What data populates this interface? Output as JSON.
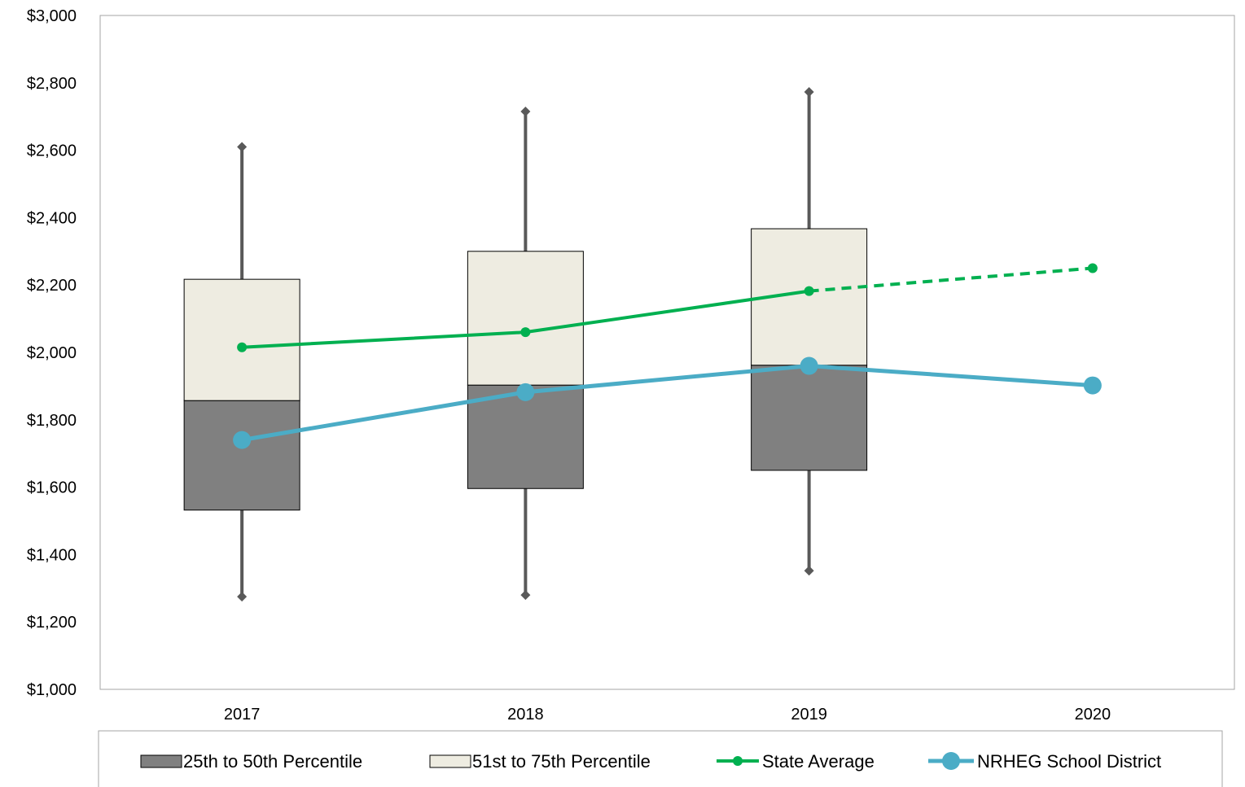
{
  "chart_data": {
    "type": "box-line",
    "categories": [
      "2017",
      "2018",
      "2019",
      "2020"
    ],
    "y_ticks": [
      "$1,000",
      "$1,200",
      "$1,400",
      "$1,600",
      "$1,800",
      "$2,000",
      "$2,200",
      "$2,400",
      "$2,600",
      "$2,800",
      "$3,000"
    ],
    "ylim": [
      1000,
      3000
    ],
    "y_tick_step": 200,
    "boxes": [
      {
        "category": "2017",
        "min": 1275,
        "q1": 1532,
        "median": 1857,
        "q3": 2217,
        "max": 2610
      },
      {
        "category": "2018",
        "min": 1280,
        "q1": 1596,
        "median": 1903,
        "q3": 2300,
        "max": 2715
      },
      {
        "category": "2019",
        "min": 1352,
        "q1": 1650,
        "median": 1962,
        "q3": 2367,
        "max": 2773
      }
    ],
    "series": [
      {
        "name": "State Average",
        "values": [
          2015,
          2060,
          2182,
          2250
        ],
        "color": "#00b050",
        "projected_from_index": 2
      },
      {
        "name": "NRHEG School District",
        "values": [
          1740,
          1882,
          1960,
          1902
        ],
        "color": "#4bacc6"
      }
    ],
    "legend": [
      {
        "label": "25th to 50th Percentile",
        "kind": "box",
        "color": "#808080"
      },
      {
        "label": "51st to 75th Percentile",
        "kind": "box",
        "color": "#eeece1"
      },
      {
        "label": "State Average",
        "kind": "line-small-marker",
        "color": "#00b050"
      },
      {
        "label": "NRHEG School District",
        "kind": "line-large-marker",
        "color": "#4bacc6"
      }
    ],
    "legend_position": "bottom",
    "grid": false,
    "colors": {
      "lower_box": "#808080",
      "upper_box": "#eeece1",
      "whisker": "#595959",
      "axis": "#a6a6a6"
    }
  }
}
